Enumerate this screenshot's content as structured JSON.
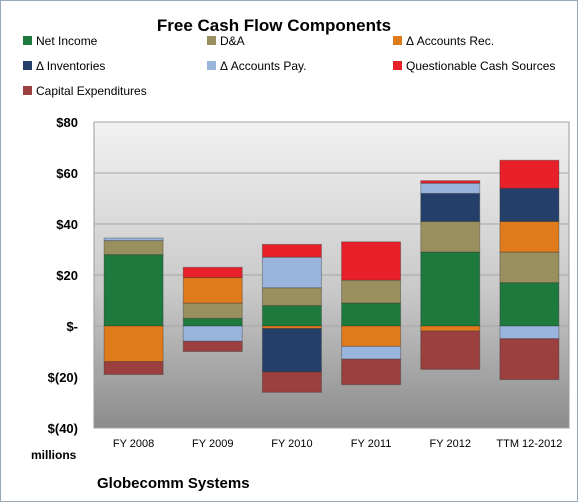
{
  "chart_data": {
    "type": "bar",
    "stacked": true,
    "title": "Free Cash Flow Components",
    "unit_label": "millions",
    "footer": "Globecomm Systems",
    "categories": [
      "FY 2008",
      "FY 2009",
      "FY 2010",
      "FY 2011",
      "FY 2012",
      "TTM 12-2012"
    ],
    "y_ticks": [
      "$80",
      "$60",
      "$40",
      "$20",
      "$-",
      "$(20)",
      "$(40)"
    ],
    "ylim": [
      -40,
      80
    ],
    "grid": true,
    "legend_position": "top",
    "series": [
      {
        "name": "Net Income",
        "color": "#1e7a3c",
        "values": [
          28,
          3,
          8,
          9,
          29,
          17
        ]
      },
      {
        "name": "D&A",
        "color": "#9a8f5e",
        "values": [
          5.5,
          6,
          7,
          9,
          12,
          12
        ]
      },
      {
        "name": "Δ Accounts Rec.",
        "color": "#e07b1c",
        "values": [
          -14,
          10,
          -1,
          -8,
          -2,
          12
        ]
      },
      {
        "name": "Δ Inventories",
        "color": "#24406a",
        "values": [
          0,
          0,
          -17,
          0,
          11,
          13
        ]
      },
      {
        "name": "Δ Accounts Pay.",
        "color": "#9ab5dc",
        "values": [
          1,
          -6,
          12,
          -5,
          4,
          -5
        ]
      },
      {
        "name": "Questionable Cash Sources",
        "color": "#e8202a",
        "values": [
          0,
          4,
          5,
          15,
          1,
          11
        ]
      },
      {
        "name": "Capital Expenditures",
        "color": "#9b3f3f",
        "values": [
          -5,
          -4,
          -8,
          -10,
          -15,
          -16
        ]
      }
    ]
  }
}
